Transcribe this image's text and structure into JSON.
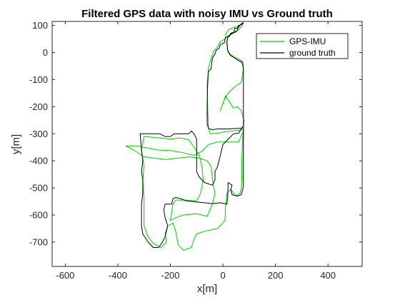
{
  "chart_data": {
    "type": "line",
    "title": "Filtered GPS data with noisy IMU vs Ground truth",
    "xlabel": "x[m]",
    "ylabel": "y[m]",
    "xlim": [
      -650,
      530
    ],
    "ylim": [
      -790,
      115
    ],
    "xticks": [
      -600,
      -400,
      -200,
      0,
      200,
      400
    ],
    "xtick_labels": [
      "-600",
      "-400",
      "-200",
      "0",
      "200",
      "400"
    ],
    "yticks": [
      100,
      0,
      -100,
      -200,
      -300,
      -400,
      -500,
      -600,
      -700
    ],
    "ytick_labels": [
      "100",
      "0",
      "-100",
      "-200",
      "-300",
      "-400",
      "-500",
      "-600",
      "-700"
    ],
    "grid": false,
    "legend_position": "top-right",
    "series": [
      {
        "name": "GPS-IMU",
        "color": "#00cc00",
        "points": [
          [
            75,
            110
          ],
          [
            62,
            100
          ],
          [
            40,
            92
          ],
          [
            22,
            85
          ],
          [
            12,
            70
          ],
          [
            8,
            50
          ],
          [
            -10,
            40
          ],
          [
            -20,
            22
          ],
          [
            -35,
            5
          ],
          [
            -45,
            -20
          ],
          [
            -55,
            -60
          ],
          [
            -60,
            -120
          ],
          [
            -58,
            -200
          ],
          [
            -55,
            -280
          ],
          [
            -48,
            -300
          ],
          [
            -20,
            -298
          ],
          [
            10,
            -292
          ],
          [
            40,
            -290
          ],
          [
            78,
            -285
          ],
          [
            75,
            -320
          ],
          [
            72,
            -400
          ],
          [
            72,
            -470
          ],
          [
            70,
            -500
          ],
          [
            65,
            -520
          ],
          [
            50,
            -530
          ],
          [
            30,
            -505
          ],
          [
            15,
            -520
          ],
          [
            10,
            -570
          ],
          [
            8,
            -620
          ],
          [
            -20,
            -650
          ],
          [
            -70,
            -660
          ],
          [
            -100,
            -670
          ],
          [
            -110,
            -690
          ],
          [
            -120,
            -720
          ],
          [
            -150,
            -730
          ],
          [
            -170,
            -710
          ],
          [
            -180,
            -660
          ],
          [
            -190,
            -630
          ],
          [
            -210,
            -640
          ],
          [
            -220,
            -670
          ],
          [
            -215,
            -700
          ],
          [
            -235,
            -720
          ],
          [
            -265,
            -705
          ],
          [
            -285,
            -680
          ],
          [
            -300,
            -640
          ],
          [
            -300,
            -540
          ],
          [
            -305,
            -470
          ],
          [
            -300,
            -420
          ],
          [
            -310,
            -360
          ],
          [
            -300,
            -310
          ],
          [
            -240,
            -315
          ],
          [
            -200,
            -320
          ],
          [
            -165,
            -315
          ],
          [
            -130,
            -322
          ],
          [
            -110,
            -350
          ],
          [
            -90,
            -380
          ],
          [
            -80,
            -420
          ],
          [
            -75,
            -470
          ],
          [
            -85,
            -520
          ],
          [
            -100,
            -548
          ],
          [
            -140,
            -545
          ],
          [
            -180,
            -545
          ],
          [
            -190,
            -560
          ],
          [
            -200,
            -620
          ],
          [
            -180,
            -610
          ],
          [
            -150,
            -600
          ],
          [
            -100,
            -595
          ],
          [
            -60,
            -605
          ],
          [
            -40,
            -560
          ],
          [
            -30,
            -520
          ],
          [
            -40,
            -470
          ],
          [
            -45,
            -420
          ],
          [
            -60,
            -400
          ],
          [
            -90,
            -390
          ],
          [
            -130,
            -385
          ],
          [
            -170,
            -390
          ],
          [
            -220,
            -395
          ],
          [
            -260,
            -390
          ],
          [
            -300,
            -385
          ],
          [
            -340,
            -360
          ],
          [
            -370,
            -345
          ],
          [
            -330,
            -345
          ],
          [
            -290,
            -352
          ],
          [
            -250,
            -360
          ],
          [
            -200,
            -362
          ],
          [
            -150,
            -370
          ],
          [
            -110,
            -380
          ],
          [
            -80,
            -365
          ],
          [
            -55,
            -340
          ],
          [
            -20,
            -330
          ],
          [
            20,
            -330
          ],
          [
            60,
            -330
          ],
          [
            78,
            -290
          ],
          [
            80,
            -250
          ],
          [
            70,
            -215
          ],
          [
            55,
            -200
          ],
          [
            40,
            -205
          ],
          [
            10,
            -160
          ],
          [
            -10,
            -215
          ],
          [
            5,
            -175
          ],
          [
            20,
            -150
          ],
          [
            40,
            -130
          ],
          [
            70,
            -110
          ],
          [
            78,
            -60
          ],
          [
            70,
            -30
          ],
          [
            40,
            -15
          ],
          [
            20,
            0
          ],
          [
            15,
            30
          ],
          [
            18,
            60
          ],
          [
            40,
            75
          ],
          [
            60,
            85
          ],
          [
            75,
            100
          ]
        ]
      },
      {
        "name": "ground truth",
        "color": "#000000",
        "points": [
          [
            78,
            108
          ],
          [
            70,
            102
          ],
          [
            60,
            100
          ],
          [
            55,
            90
          ],
          [
            45,
            90
          ],
          [
            42,
            75
          ],
          [
            30,
            72
          ],
          [
            25,
            60
          ],
          [
            10,
            55
          ],
          [
            5,
            35
          ],
          [
            -10,
            30
          ],
          [
            -15,
            15
          ],
          [
            -25,
            10
          ],
          [
            -30,
            -5
          ],
          [
            -40,
            -20
          ],
          [
            -45,
            -60
          ],
          [
            -55,
            -70
          ],
          [
            -58,
            -120
          ],
          [
            -60,
            -200
          ],
          [
            -60,
            -260
          ],
          [
            -55,
            -280
          ],
          [
            -40,
            -285
          ],
          [
            -20,
            -282
          ],
          [
            20,
            -282
          ],
          [
            60,
            -280
          ],
          [
            78,
            -278
          ],
          [
            78,
            -300
          ],
          [
            78,
            -400
          ],
          [
            78,
            -470
          ],
          [
            78,
            -495
          ],
          [
            70,
            -525
          ],
          [
            55,
            -530
          ],
          [
            35,
            -525
          ],
          [
            30,
            -505
          ],
          [
            35,
            -490
          ],
          [
            20,
            -480
          ],
          [
            18,
            -540
          ],
          [
            15,
            -560
          ],
          [
            -10,
            -555
          ],
          [
            -40,
            -558
          ],
          [
            -70,
            -555
          ],
          [
            -100,
            -552
          ],
          [
            -140,
            -548
          ],
          [
            -160,
            -540
          ],
          [
            -180,
            -535
          ],
          [
            -190,
            -540
          ],
          [
            -195,
            -560
          ],
          [
            -220,
            -560
          ],
          [
            -225,
            -580
          ],
          [
            -220,
            -610
          ],
          [
            -210,
            -640
          ],
          [
            -215,
            -660
          ],
          [
            -220,
            -680
          ],
          [
            -230,
            -700
          ],
          [
            -245,
            -720
          ],
          [
            -265,
            -720
          ],
          [
            -285,
            -700
          ],
          [
            -305,
            -670
          ],
          [
            -310,
            -640
          ],
          [
            -310,
            -560
          ],
          [
            -305,
            -520
          ],
          [
            -305,
            -470
          ],
          [
            -310,
            -440
          ],
          [
            -305,
            -400
          ],
          [
            -310,
            -360
          ],
          [
            -315,
            -300
          ],
          [
            -280,
            -300
          ],
          [
            -240,
            -300
          ],
          [
            -220,
            -310
          ],
          [
            -200,
            -310
          ],
          [
            -185,
            -300
          ],
          [
            -160,
            -300
          ],
          [
            -130,
            -300
          ],
          [
            -120,
            -290
          ],
          [
            -110,
            -300
          ],
          [
            -100,
            -320
          ],
          [
            -100,
            -440
          ],
          [
            -90,
            -460
          ],
          [
            -70,
            -480
          ],
          [
            -40,
            -490
          ],
          [
            -30,
            -470
          ],
          [
            -30,
            -440
          ],
          [
            -20,
            -420
          ],
          [
            -10,
            -380
          ],
          [
            0,
            -340
          ],
          [
            20,
            -320
          ],
          [
            40,
            -300
          ],
          [
            60,
            -298
          ],
          [
            70,
            -282
          ],
          [
            78,
            -270
          ],
          [
            78,
            -240
          ],
          [
            78,
            -200
          ],
          [
            78,
            -150
          ],
          [
            78,
            -110
          ],
          [
            78,
            -60
          ],
          [
            75,
            -35
          ],
          [
            60,
            -30
          ],
          [
            45,
            -20
          ],
          [
            28,
            -10
          ],
          [
            18,
            10
          ],
          [
            15,
            40
          ],
          [
            20,
            60
          ],
          [
            35,
            70
          ],
          [
            52,
            78
          ],
          [
            60,
            95
          ],
          [
            70,
            105
          ],
          [
            78,
            112
          ]
        ]
      }
    ]
  }
}
